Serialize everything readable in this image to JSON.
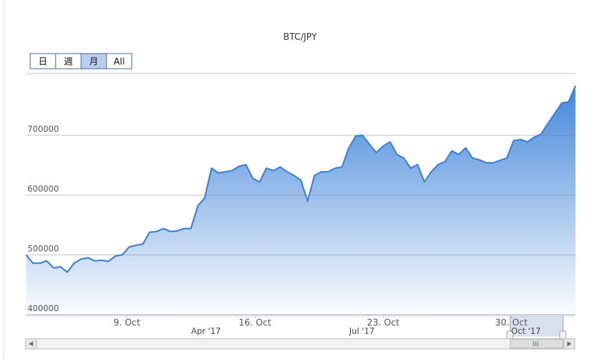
{
  "chart_data": {
    "type": "area",
    "title": "BTC/JPY",
    "x": [
      3.5,
      3.875,
      4.25,
      4.625,
      5,
      5.375,
      5.75,
      6.125,
      6.5,
      6.875,
      7.25,
      7.625,
      8,
      8.375,
      8.75,
      9.125,
      9.5,
      9.875,
      10.25,
      10.625,
      11,
      11.375,
      11.75,
      12.125,
      12.5,
      12.875,
      13.25,
      13.625,
      14,
      14.375,
      14.75,
      15.125,
      15.5,
      15.875,
      16.25,
      16.625,
      17,
      17.375,
      17.75,
      18.125,
      18.5,
      18.875,
      19.25,
      19.625,
      20,
      20.375,
      20.75,
      21.125,
      21.5,
      21.875,
      22.25,
      22.625,
      23,
      23.375,
      23.75,
      24.125,
      24.5,
      24.875,
      25.25,
      25.625,
      26,
      26.375,
      26.75,
      27.125,
      27.5,
      27.875,
      28.25,
      28.625,
      29,
      29.375,
      29.75,
      30.125,
      30.5,
      30.875,
      31.25,
      31.625,
      32,
      32.375,
      32.75,
      33.125,
      33.5
    ],
    "series": [
      {
        "name": "BTC/JPY",
        "color": "#3a80d8",
        "values": [
          500000,
          486000,
          486000,
          490000,
          478000,
          480000,
          471000,
          486000,
          493000,
          495000,
          490000,
          491000,
          489000,
          498000,
          500000,
          513000,
          516000,
          518000,
          538000,
          539000,
          544000,
          539000,
          540000,
          544000,
          544000,
          582000,
          595000,
          645000,
          637000,
          639000,
          641000,
          648000,
          651000,
          628000,
          622000,
          645000,
          641000,
          647000,
          639000,
          633000,
          625000,
          590000,
          633000,
          639000,
          639000,
          645000,
          647000,
          679000,
          699000,
          700000,
          685000,
          671000,
          682000,
          689000,
          668000,
          662000,
          645000,
          651000,
          622000,
          639000,
          651000,
          656000,
          674000,
          668000,
          679000,
          662000,
          659000,
          654000,
          654000,
          658000,
          662000,
          691000,
          693000,
          689000,
          697000,
          702000,
          720000,
          737000,
          754000,
          756000,
          783000
        ]
      }
    ],
    "xlim": [
      3.5,
      33.5
    ],
    "xticks": [
      {
        "value": 9,
        "label": "9. Oct"
      },
      {
        "value": 16,
        "label": "16. Oct"
      },
      {
        "value": 23,
        "label": "23. Oct"
      },
      {
        "value": 30,
        "label": "30. Oct"
      }
    ],
    "ylim": [
      400000,
      800000
    ],
    "yticks": [
      400000,
      500000,
      600000,
      700000
    ],
    "grid": true,
    "range_selector": {
      "buttons": [
        "日",
        "週",
        "月",
        "All"
      ],
      "selected": 2
    },
    "navigator": {
      "labels": [
        "Apr '17",
        "Jul '17",
        "Oct '17"
      ]
    }
  }
}
